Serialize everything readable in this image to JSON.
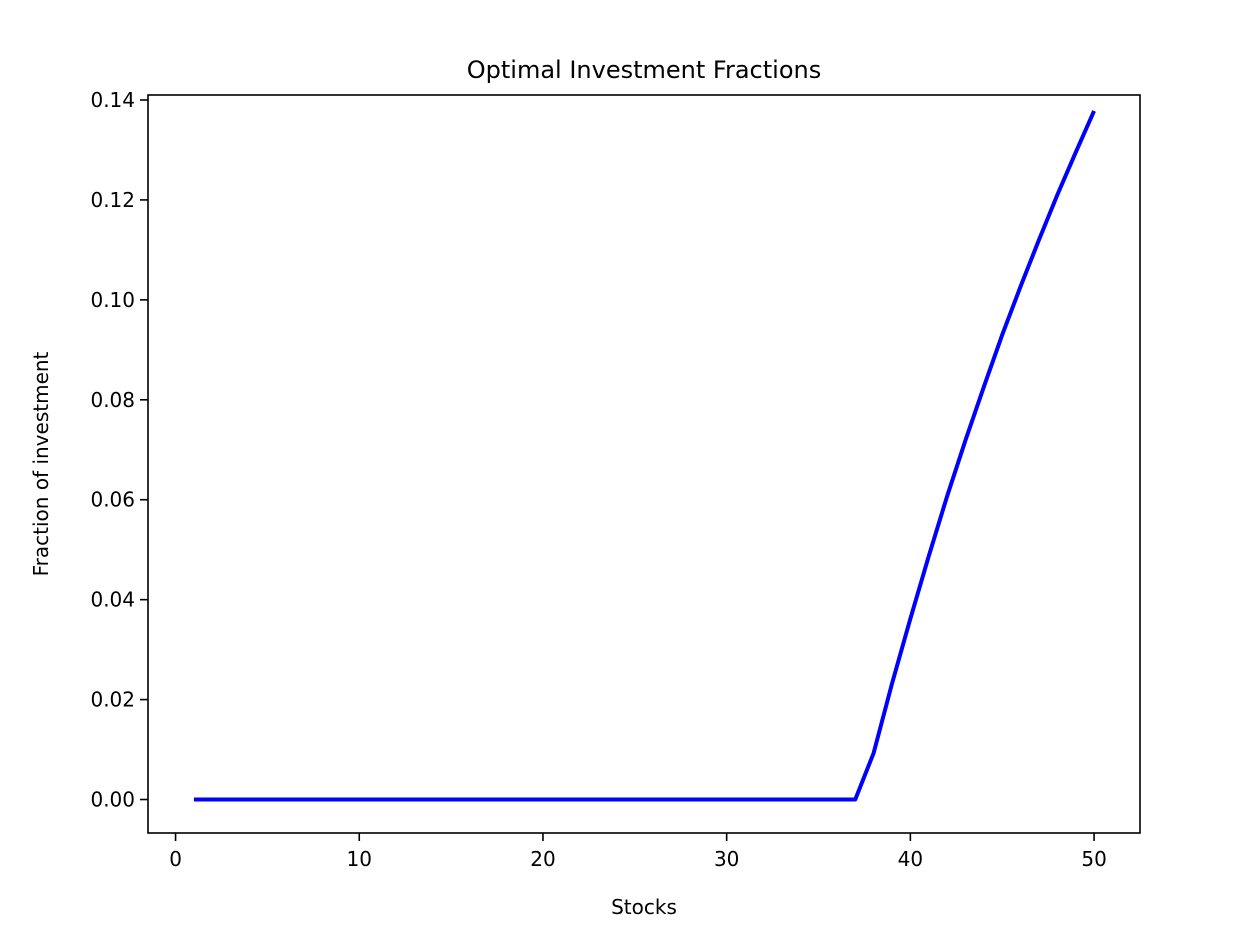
{
  "chart_data": {
    "type": "line",
    "title": "Optimal Investment Fractions",
    "xlabel": "Stocks",
    "ylabel": "Fraction of investment",
    "xlim": [
      -1.5,
      52.5
    ],
    "ylim": [
      -0.0067,
      0.141
    ],
    "x_ticks": [
      0,
      10,
      20,
      30,
      40,
      50
    ],
    "x_tick_labels": [
      "0",
      "10",
      "20",
      "30",
      "40",
      "50"
    ],
    "y_ticks": [
      0.0,
      0.02,
      0.04,
      0.06,
      0.08,
      0.1,
      0.12,
      0.14
    ],
    "y_tick_labels": [
      "0.00",
      "0.02",
      "0.04",
      "0.06",
      "0.08",
      "0.10",
      "0.12",
      "0.14"
    ],
    "grid": false,
    "series": [
      {
        "color": "#0000ff",
        "x": [
          1,
          2,
          3,
          4,
          5,
          6,
          7,
          8,
          9,
          10,
          11,
          12,
          13,
          14,
          15,
          16,
          17,
          18,
          19,
          20,
          21,
          22,
          23,
          24,
          25,
          26,
          27,
          28,
          29,
          30,
          31,
          32,
          33,
          34,
          35,
          36,
          37,
          38,
          39,
          40,
          41,
          42,
          43,
          44,
          45,
          46,
          47,
          48,
          49,
          50
        ],
        "values": [
          0,
          0,
          0,
          0,
          0,
          0,
          0,
          0,
          0,
          0,
          0,
          0,
          0,
          0,
          0,
          0,
          0,
          0,
          0,
          0,
          0,
          0,
          0,
          0,
          0,
          0,
          0,
          0,
          0,
          0,
          0,
          0,
          0,
          0,
          0,
          0,
          0,
          0.0093,
          0.0232,
          0.0362,
          0.0487,
          0.0607,
          0.0719,
          0.0826,
          0.093,
          0.1027,
          0.112,
          0.121,
          0.1295,
          0.1378
        ]
      }
    ]
  }
}
